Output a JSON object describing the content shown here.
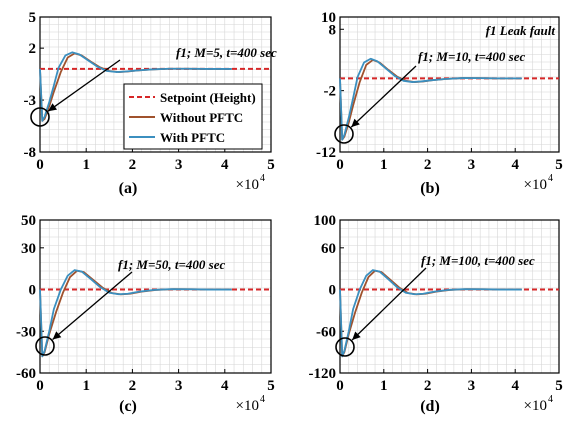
{
  "colors": {
    "setpoint": "#d62728",
    "without": "#a0522d",
    "with": "#3b8fbf",
    "grid": "#d6d6d6"
  },
  "legend": {
    "placement": "right",
    "entries": [
      "Setpoint (Height)",
      "Without PFTC",
      "With PFTC"
    ]
  },
  "chart_data": [
    {
      "type": "line",
      "panel_label": "(a)",
      "title": "",
      "annotation": "f1; M=5, t=400 sec",
      "x_multiplier": "×10^4",
      "xlim": [
        0,
        5
      ],
      "ylim": [
        -8,
        5
      ],
      "xticks": [
        0,
        1,
        2,
        3,
        4,
        5
      ],
      "yticks": [
        5,
        2,
        -3,
        -8
      ],
      "grid": true,
      "series": [
        {
          "name": "Setpoint (Height)",
          "style": "dashed",
          "x": [
            0,
            5
          ],
          "y": [
            0,
            0
          ]
        },
        {
          "name": "Without PFTC",
          "x": [
            0,
            0.05,
            0.1,
            0.2,
            0.3,
            0.45,
            0.6,
            0.75,
            0.9,
            1.1,
            1.3,
            1.5,
            1.7,
            1.9,
            2.1,
            2.4,
            2.8,
            3.2,
            3.6,
            4.0,
            4.15
          ],
          "y": [
            0,
            -5,
            -4.8,
            -3.6,
            -2.2,
            -0.3,
            1.1,
            1.5,
            1.3,
            0.7,
            0.15,
            -0.2,
            -0.3,
            -0.25,
            -0.15,
            -0.05,
            0.02,
            0.02,
            0.0,
            0.0,
            0.0
          ]
        },
        {
          "name": "With PFTC",
          "x": [
            0,
            0.05,
            0.1,
            0.2,
            0.3,
            0.4,
            0.55,
            0.7,
            0.85,
            1.05,
            1.25,
            1.45,
            1.65,
            1.85,
            2.1,
            2.4,
            2.8,
            3.2,
            3.6,
            4.0,
            4.15
          ],
          "y": [
            0,
            -5,
            -4.6,
            -3.2,
            -1.6,
            0.1,
            1.3,
            1.6,
            1.4,
            0.8,
            0.2,
            -0.2,
            -0.3,
            -0.25,
            -0.15,
            -0.05,
            0.02,
            0.02,
            0.0,
            0.0,
            0.0
          ]
        }
      ]
    },
    {
      "type": "line",
      "panel_label": "(b)",
      "title": "f1 Leak fault",
      "annotation": "f1; M=10, t=400 sec",
      "x_multiplier": "×10^4",
      "xlim": [
        0,
        5
      ],
      "ylim": [
        -12,
        10
      ],
      "xticks": [
        0,
        1,
        2,
        3,
        4,
        5
      ],
      "yticks": [
        10,
        8,
        -2,
        -12
      ],
      "grid": true,
      "series": [
        {
          "name": "Setpoint (Height)",
          "style": "dashed",
          "x": [
            0,
            5
          ],
          "y": [
            0,
            0
          ]
        },
        {
          "name": "Without PFTC",
          "x": [
            0,
            0.05,
            0.1,
            0.2,
            0.3,
            0.45,
            0.6,
            0.75,
            0.9,
            1.1,
            1.3,
            1.5,
            1.7,
            1.9,
            2.1,
            2.4,
            2.8,
            3.2,
            3.6,
            4.0,
            4.15
          ],
          "y": [
            0,
            -10,
            -9.5,
            -7.2,
            -4.4,
            -0.6,
            2.2,
            3.0,
            2.6,
            1.4,
            0.3,
            -0.4,
            -0.6,
            -0.5,
            -0.3,
            -0.1,
            0.05,
            0.04,
            0.0,
            0.0,
            0.0
          ]
        },
        {
          "name": "With PFTC",
          "x": [
            0,
            0.05,
            0.1,
            0.2,
            0.3,
            0.4,
            0.55,
            0.7,
            0.85,
            1.05,
            1.25,
            1.45,
            1.65,
            1.85,
            2.1,
            2.4,
            2.8,
            3.2,
            3.6,
            4.0,
            4.15
          ],
          "y": [
            0,
            -10,
            -9.2,
            -6.4,
            -3.2,
            0.2,
            2.6,
            3.2,
            2.8,
            1.6,
            0.4,
            -0.4,
            -0.6,
            -0.5,
            -0.3,
            -0.1,
            0.05,
            0.04,
            0.0,
            0.0,
            0.0
          ]
        }
      ]
    },
    {
      "type": "line",
      "panel_label": "(c)",
      "title": "",
      "annotation": "f1; M=50, t=400 sec",
      "x_multiplier": "×10^4",
      "xlim": [
        0,
        5
      ],
      "ylim": [
        -60,
        50
      ],
      "xticks": [
        0,
        1,
        2,
        3,
        4,
        5
      ],
      "yticks": [
        50,
        30,
        0,
        -30,
        -60
      ],
      "grid": true,
      "series": [
        {
          "name": "Setpoint (Height)",
          "style": "dashed",
          "x": [
            0,
            5
          ],
          "y": [
            0,
            0
          ]
        },
        {
          "name": "Without PFTC",
          "x": [
            0,
            0.05,
            0.1,
            0.2,
            0.35,
            0.5,
            0.65,
            0.8,
            0.95,
            1.15,
            1.35,
            1.55,
            1.75,
            1.95,
            2.2,
            2.5,
            2.9,
            3.3,
            3.7,
            4.0,
            4.15
          ],
          "y": [
            0,
            -48,
            -45,
            -32,
            -16,
            -2,
            9,
            13.5,
            12.5,
            7,
            1.5,
            -2.5,
            -3.5,
            -3,
            -1.5,
            -0.3,
            0.3,
            0.2,
            0.0,
            0.0,
            0.0
          ]
        },
        {
          "name": "With PFTC",
          "x": [
            0,
            0.05,
            0.1,
            0.2,
            0.3,
            0.45,
            0.6,
            0.75,
            0.9,
            1.1,
            1.3,
            1.5,
            1.7,
            1.9,
            2.15,
            2.45,
            2.85,
            3.25,
            3.65,
            4.0,
            4.15
          ],
          "y": [
            0,
            -48,
            -44,
            -30,
            -14,
            0,
            10,
            14,
            13,
            7.5,
            1.8,
            -2.3,
            -3.4,
            -3,
            -1.5,
            -0.3,
            0.3,
            0.2,
            0.0,
            0.0,
            0.0
          ]
        }
      ]
    },
    {
      "type": "line",
      "panel_label": "(d)",
      "title": "",
      "annotation": "f1; M=100, t=400 sec",
      "x_multiplier": "×10^4",
      "xlim": [
        0,
        5
      ],
      "ylim": [
        -120,
        100
      ],
      "xticks": [
        0,
        1,
        2,
        3,
        4,
        5
      ],
      "yticks": [
        100,
        60,
        0,
        -60,
        -120
      ],
      "grid": true,
      "series": [
        {
          "name": "Setpoint (Height)",
          "style": "dashed",
          "x": [
            0,
            5
          ],
          "y": [
            0,
            0
          ]
        },
        {
          "name": "Without PFTC",
          "x": [
            0,
            0.05,
            0.1,
            0.2,
            0.35,
            0.5,
            0.65,
            0.8,
            0.95,
            1.15,
            1.35,
            1.55,
            1.75,
            1.95,
            2.2,
            2.5,
            2.9,
            3.3,
            3.7,
            4.0,
            4.15
          ],
          "y": [
            0,
            -96,
            -90,
            -64,
            -32,
            -4,
            18,
            27,
            25,
            14,
            3,
            -5,
            -7,
            -6,
            -3,
            -0.6,
            0.6,
            0.4,
            0.0,
            0.0,
            0.0
          ]
        },
        {
          "name": "With PFTC",
          "x": [
            0,
            0.05,
            0.1,
            0.2,
            0.3,
            0.45,
            0.6,
            0.75,
            0.9,
            1.1,
            1.3,
            1.5,
            1.7,
            1.9,
            2.15,
            2.45,
            2.85,
            3.25,
            3.65,
            4.0,
            4.15
          ],
          "y": [
            0,
            -96,
            -88,
            -60,
            -28,
            0,
            20,
            28,
            26,
            15,
            3.6,
            -4.6,
            -6.8,
            -6,
            -3,
            -0.6,
            0.6,
            0.4,
            0.0,
            0.0,
            0.0
          ]
        }
      ]
    }
  ]
}
